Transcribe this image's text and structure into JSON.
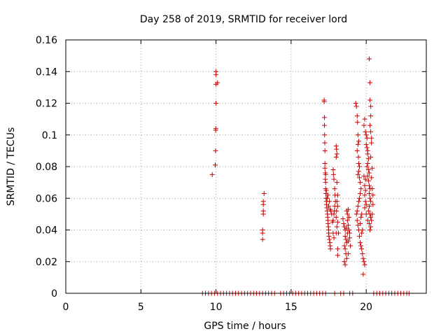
{
  "chart_data": {
    "type": "scatter",
    "title": "Day 258 of 2019, SRMTID for receiver lord",
    "xlabel": "GPS time / hours",
    "ylabel": "SRMTID / TECUs",
    "xlim": [
      0,
      24
    ],
    "ylim": [
      0,
      0.16
    ],
    "xticks": [
      0,
      5,
      10,
      15,
      20
    ],
    "xtick_labels": [
      "0",
      "5",
      "10",
      "15",
      "20"
    ],
    "yticks": [
      0,
      0.02,
      0.04,
      0.06,
      0.08,
      0.1,
      0.12,
      0.14,
      0.16
    ],
    "ytick_labels": [
      "0",
      "0.02",
      "0.04",
      "0.06",
      "0.08",
      "0.1",
      "0.12",
      "0.14",
      "0.16"
    ],
    "grid": true,
    "marker": "+",
    "marker_color": "#cc0000",
    "grid_color": "#a0a0a0",
    "series": [
      {
        "name": "SRMTID",
        "points": [
          [
            9.75,
            0.075
          ],
          [
            9.95,
            0.081
          ],
          [
            9.97,
            0.09
          ],
          [
            9.98,
            0.103
          ],
          [
            9.99,
            0.104
          ],
          [
            10.0,
            0.12
          ],
          [
            10.0,
            0.132
          ],
          [
            10.0,
            0.138
          ],
          [
            10.0,
            0.14
          ],
          [
            10.1,
            0.133
          ],
          [
            13.1,
            0.034
          ],
          [
            13.1,
            0.038
          ],
          [
            13.1,
            0.04
          ],
          [
            13.15,
            0.05
          ],
          [
            13.15,
            0.052
          ],
          [
            13.15,
            0.056
          ],
          [
            13.15,
            0.058
          ],
          [
            13.2,
            0.063
          ],
          [
            17.2,
            0.121
          ],
          [
            17.2,
            0.122
          ],
          [
            17.22,
            0.111
          ],
          [
            17.22,
            0.106
          ],
          [
            17.23,
            0.1
          ],
          [
            17.24,
            0.095
          ],
          [
            17.25,
            0.09
          ],
          [
            17.25,
            0.082
          ],
          [
            17.28,
            0.076
          ],
          [
            17.28,
            0.072
          ],
          [
            17.3,
            0.07
          ],
          [
            17.3,
            0.066
          ],
          [
            17.32,
            0.063
          ],
          [
            17.33,
            0.06
          ],
          [
            17.35,
            0.058
          ],
          [
            17.36,
            0.056
          ],
          [
            17.38,
            0.054
          ],
          [
            17.4,
            0.052
          ],
          [
            17.42,
            0.05
          ],
          [
            17.44,
            0.048
          ],
          [
            17.45,
            0.046
          ],
          [
            17.46,
            0.044
          ],
          [
            17.48,
            0.042
          ],
          [
            17.5,
            0.04
          ],
          [
            17.5,
            0.038
          ],
          [
            17.52,
            0.036
          ],
          [
            17.55,
            0.034
          ],
          [
            17.58,
            0.032
          ],
          [
            17.6,
            0.03
          ],
          [
            17.62,
            0.028
          ],
          [
            17.35,
            0.065
          ],
          [
            17.4,
            0.06
          ],
          [
            17.5,
            0.055
          ],
          [
            17.55,
            0.058
          ],
          [
            17.6,
            0.053
          ],
          [
            17.45,
            0.062
          ],
          [
            17.65,
            0.052
          ],
          [
            17.7,
            0.05
          ],
          [
            17.3,
            0.075
          ],
          [
            17.25,
            0.079
          ],
          [
            17.8,
            0.078
          ],
          [
            17.82,
            0.075
          ],
          [
            17.85,
            0.072
          ],
          [
            17.9,
            0.066
          ],
          [
            17.92,
            0.062
          ],
          [
            17.95,
            0.058
          ],
          [
            17.9,
            0.055
          ],
          [
            17.88,
            0.052
          ],
          [
            17.85,
            0.05
          ],
          [
            17.8,
            0.046
          ],
          [
            17.75,
            0.045
          ],
          [
            17.8,
            0.038
          ],
          [
            17.85,
            0.035
          ],
          [
            18.0,
            0.093
          ],
          [
            18.02,
            0.091
          ],
          [
            18.05,
            0.088
          ],
          [
            18.0,
            0.086
          ],
          [
            18.05,
            0.07
          ],
          [
            18.1,
            0.062
          ],
          [
            18.05,
            0.058
          ],
          [
            18.1,
            0.055
          ],
          [
            18.02,
            0.052
          ],
          [
            18.0,
            0.048
          ],
          [
            18.1,
            0.045
          ],
          [
            18.05,
            0.042
          ],
          [
            18.0,
            0.038
          ],
          [
            18.15,
            0.038
          ],
          [
            18.1,
            0.028
          ],
          [
            18.1,
            0.024
          ],
          [
            18.45,
            0.047
          ],
          [
            18.5,
            0.044
          ],
          [
            18.55,
            0.042
          ],
          [
            18.6,
            0.04
          ],
          [
            18.6,
            0.036
          ],
          [
            18.65,
            0.034
          ],
          [
            18.7,
            0.032
          ],
          [
            18.55,
            0.03
          ],
          [
            18.6,
            0.028
          ],
          [
            18.65,
            0.025
          ],
          [
            18.7,
            0.022
          ],
          [
            18.55,
            0.02
          ],
          [
            18.6,
            0.018
          ],
          [
            18.8,
            0.033
          ],
          [
            18.75,
            0.038
          ],
          [
            18.7,
            0.041
          ],
          [
            18.8,
            0.043
          ],
          [
            18.85,
            0.04
          ],
          [
            18.9,
            0.038
          ],
          [
            18.75,
            0.05
          ],
          [
            18.7,
            0.052
          ],
          [
            18.8,
            0.053
          ],
          [
            18.75,
            0.046
          ],
          [
            18.85,
            0.048
          ],
          [
            18.9,
            0.035
          ],
          [
            18.95,
            0.03
          ],
          [
            18.8,
            0.025
          ],
          [
            19.3,
            0.12
          ],
          [
            19.35,
            0.118
          ],
          [
            19.4,
            0.112
          ],
          [
            19.42,
            0.108
          ],
          [
            19.45,
            0.1
          ],
          [
            19.5,
            0.096
          ],
          [
            19.45,
            0.094
          ],
          [
            19.4,
            0.09
          ],
          [
            19.48,
            0.086
          ],
          [
            19.5,
            0.082
          ],
          [
            19.55,
            0.08
          ],
          [
            19.5,
            0.077
          ],
          [
            19.45,
            0.075
          ],
          [
            19.55,
            0.073
          ],
          [
            19.6,
            0.07
          ],
          [
            19.65,
            0.066
          ],
          [
            19.6,
            0.063
          ],
          [
            19.55,
            0.06
          ],
          [
            19.5,
            0.058
          ],
          [
            19.45,
            0.055
          ],
          [
            19.4,
            0.052
          ],
          [
            19.35,
            0.05
          ],
          [
            19.4,
            0.046
          ],
          [
            19.45,
            0.043
          ],
          [
            19.5,
            0.04
          ],
          [
            19.55,
            0.036
          ],
          [
            19.6,
            0.032
          ],
          [
            19.65,
            0.03
          ],
          [
            19.7,
            0.028
          ],
          [
            19.75,
            0.025
          ],
          [
            19.8,
            0.022
          ],
          [
            19.85,
            0.02
          ],
          [
            19.9,
            0.018
          ],
          [
            19.8,
            0.012
          ],
          [
            19.7,
            0.038
          ],
          [
            19.75,
            0.04
          ],
          [
            19.6,
            0.044
          ],
          [
            19.65,
            0.048
          ],
          [
            19.7,
            0.05
          ],
          [
            19.85,
            0.106
          ],
          [
            19.9,
            0.11
          ],
          [
            19.95,
            0.102
          ],
          [
            20.0,
            0.1
          ],
          [
            20.05,
            0.098
          ],
          [
            20.0,
            0.094
          ],
          [
            20.05,
            0.092
          ],
          [
            20.1,
            0.09
          ],
          [
            20.1,
            0.088
          ],
          [
            20.15,
            0.085
          ],
          [
            20.1,
            0.082
          ],
          [
            20.05,
            0.08
          ],
          [
            20.15,
            0.078
          ],
          [
            20.2,
            0.076
          ],
          [
            20.1,
            0.074
          ],
          [
            20.15,
            0.071
          ],
          [
            20.2,
            0.068
          ],
          [
            20.25,
            0.066
          ],
          [
            20.2,
            0.063
          ],
          [
            20.25,
            0.06
          ],
          [
            20.3,
            0.058
          ],
          [
            20.2,
            0.055
          ],
          [
            20.15,
            0.052
          ],
          [
            20.25,
            0.05
          ],
          [
            20.3,
            0.048
          ],
          [
            20.1,
            0.046
          ],
          [
            20.2,
            0.044
          ],
          [
            20.3,
            0.042
          ],
          [
            20.25,
            0.04
          ],
          [
            19.95,
            0.065
          ],
          [
            19.9,
            0.068
          ],
          [
            19.95,
            0.072
          ],
          [
            19.85,
            0.074
          ],
          [
            19.9,
            0.062
          ],
          [
            19.95,
            0.058
          ],
          [
            20.0,
            0.056
          ],
          [
            19.9,
            0.054
          ],
          [
            20.0,
            0.05
          ],
          [
            20.2,
            0.148
          ],
          [
            20.25,
            0.133
          ],
          [
            20.25,
            0.122
          ],
          [
            20.3,
            0.118
          ],
          [
            20.3,
            0.112
          ],
          [
            20.25,
            0.106
          ],
          [
            20.3,
            0.102
          ],
          [
            20.35,
            0.098
          ],
          [
            20.35,
            0.095
          ],
          [
            20.3,
            0.086
          ],
          [
            20.4,
            0.079
          ],
          [
            20.35,
            0.073
          ],
          [
            20.4,
            0.066
          ],
          [
            20.45,
            0.062
          ],
          [
            20.45,
            0.056
          ],
          [
            20.4,
            0.05
          ],
          [
            20.35,
            0.046
          ],
          [
            9.1,
            0
          ],
          [
            9.3,
            0
          ],
          [
            9.5,
            0
          ],
          [
            9.7,
            0
          ],
          [
            9.9,
            0
          ],
          [
            10.1,
            0
          ],
          [
            10.3,
            0
          ],
          [
            10.5,
            0
          ],
          [
            10.7,
            0
          ],
          [
            10.9,
            0
          ],
          [
            11.1,
            0
          ],
          [
            11.3,
            0
          ],
          [
            11.5,
            0
          ],
          [
            11.7,
            0
          ],
          [
            11.9,
            0
          ],
          [
            12.1,
            0
          ],
          [
            12.3,
            0
          ],
          [
            12.5,
            0
          ],
          [
            12.7,
            0
          ],
          [
            12.9,
            0
          ],
          [
            13.1,
            0
          ],
          [
            13.3,
            0
          ],
          [
            13.5,
            0
          ],
          [
            13.7,
            0
          ],
          [
            13.9,
            0
          ],
          [
            14.3,
            0
          ],
          [
            14.5,
            0
          ],
          [
            14.7,
            0
          ],
          [
            14.9,
            0
          ],
          [
            15.1,
            0
          ],
          [
            15.3,
            0
          ],
          [
            15.5,
            0
          ],
          [
            15.7,
            0
          ],
          [
            15.9,
            0
          ],
          [
            16.1,
            0
          ],
          [
            16.3,
            0
          ],
          [
            16.5,
            0
          ],
          [
            16.7,
            0
          ],
          [
            16.9,
            0
          ],
          [
            17.1,
            0
          ],
          [
            17.3,
            0
          ],
          [
            17.9,
            0
          ],
          [
            18.3,
            0
          ],
          [
            18.5,
            0
          ],
          [
            18.9,
            0
          ],
          [
            19.1,
            0
          ],
          [
            20.5,
            0
          ],
          [
            20.7,
            0
          ],
          [
            20.9,
            0
          ],
          [
            21.1,
            0
          ],
          [
            21.3,
            0
          ],
          [
            21.5,
            0
          ],
          [
            21.7,
            0
          ],
          [
            21.9,
            0
          ],
          [
            22.1,
            0
          ],
          [
            22.3,
            0
          ],
          [
            22.5,
            0
          ],
          [
            22.7,
            0
          ],
          [
            22.85,
            0
          ]
        ]
      }
    ]
  }
}
